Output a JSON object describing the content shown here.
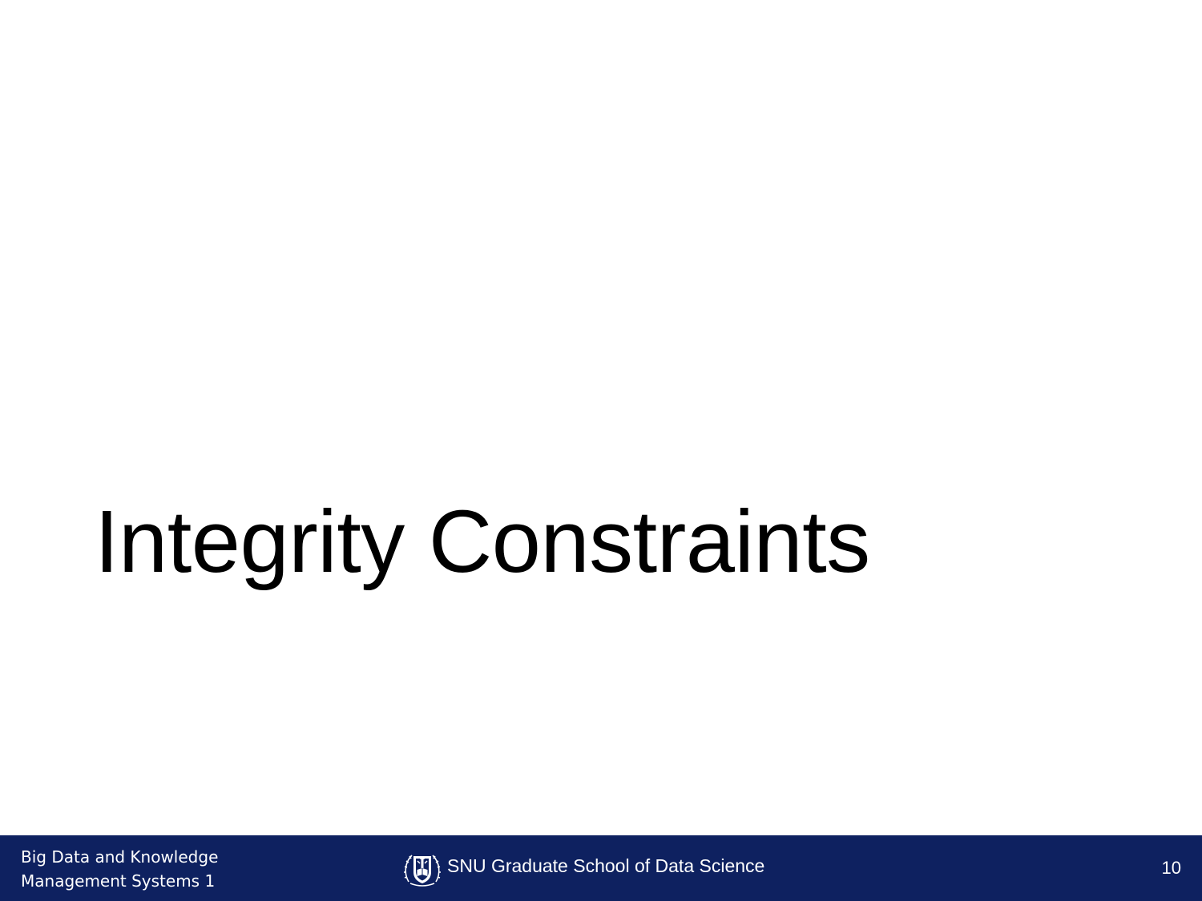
{
  "slide": {
    "title": "Integrity Constraints"
  },
  "footer": {
    "course_line1": "Big Data and Knowledge",
    "course_line2": "Management Systems 1",
    "school": "SNU Graduate School of Data Science",
    "page_number": "10",
    "logo": "snu-emblem-icon"
  },
  "colors": {
    "footer_background": "#0e2160",
    "footer_text": "#ffffff",
    "title_text": "#000000",
    "slide_background": "#ffffff"
  }
}
